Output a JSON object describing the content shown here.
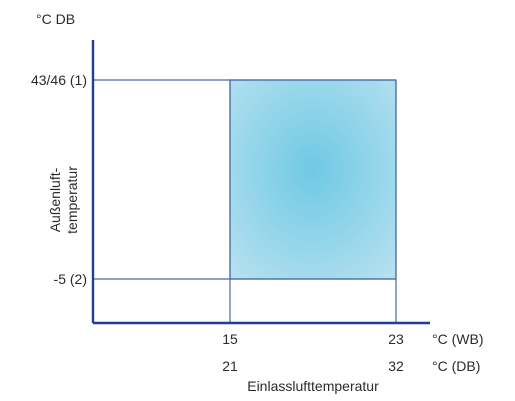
{
  "chart_data": {
    "type": "area",
    "y_unit_label": "°C DB",
    "y_axis_title": [
      "Außenluft-",
      "temperatur"
    ],
    "y_ticks": [
      {
        "value": 46,
        "label": "43/46 (1)"
      },
      {
        "value": -5,
        "label": "-5 (2)"
      }
    ],
    "x_axis_title": "Einlasslufttemperatur",
    "x_ticks_wb": {
      "values": [
        15,
        23
      ],
      "unit": "°C (WB)"
    },
    "x_ticks_db": {
      "values": [
        21,
        32
      ],
      "unit": "°C (DB)"
    },
    "operating_range": {
      "x_wb": [
        15,
        23
      ],
      "x_db": [
        21,
        32
      ],
      "y": [
        -5,
        46
      ]
    },
    "colors": {
      "axis": "#1f3f8f",
      "grid": "#4a6aa8",
      "fill_center": "#6fc9e4",
      "fill_edge": "#b4e0ef"
    }
  }
}
